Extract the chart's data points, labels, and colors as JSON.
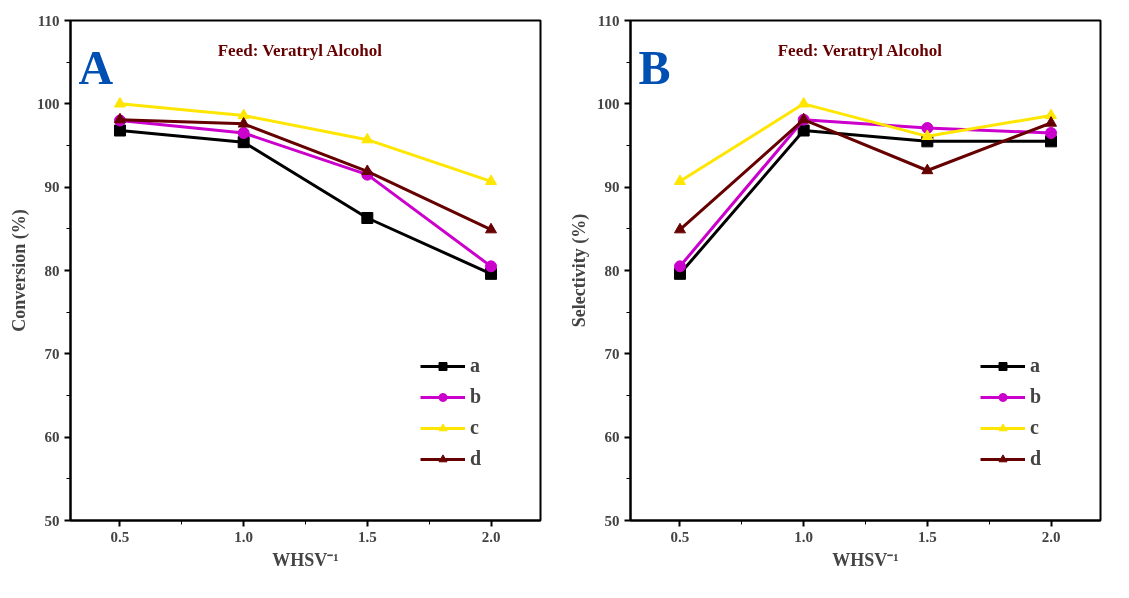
{
  "chart_data": [
    {
      "type": "line",
      "ylabel": "Conversion (%)",
      "xlabel": "WHSV⁻¹",
      "annotations": [
        "A",
        "Feed: Veratryl Alcohol"
      ],
      "x": [
        0.5,
        1.0,
        1.5,
        2.0
      ],
      "xlim": [
        0.3,
        2.2
      ],
      "xticks": [
        {
          "value": 0.5,
          "label": "0.5"
        },
        {
          "value": 1.0,
          "label": "1.0"
        },
        {
          "value": 1.5,
          "label": "1.5"
        },
        {
          "value": 2.0,
          "label": "2.0"
        }
      ],
      "ylim": [
        50,
        110
      ],
      "yticks": [
        50,
        60,
        70,
        80,
        90,
        100,
        110
      ],
      "grid": false,
      "legend": "bottom right",
      "series": [
        {
          "name": "a",
          "color": "#000000",
          "marker": "square",
          "values": [
            96.8,
            95.4,
            86.3,
            79.6
          ]
        },
        {
          "name": "b",
          "color": "#cc00cc",
          "marker": "circle",
          "values": [
            98.0,
            96.5,
            91.5,
            80.5
          ]
        },
        {
          "name": "c",
          "color": "#ffe600",
          "marker": "triangle",
          "values": [
            100.0,
            98.6,
            95.7,
            90.7
          ]
        },
        {
          "name": "d",
          "color": "#660000",
          "marker": "triangle",
          "values": [
            98.1,
            97.6,
            91.9,
            84.9
          ]
        }
      ]
    },
    {
      "type": "line",
      "ylabel": "Selectivity (%)",
      "xlabel": "WHSV⁻¹",
      "annotations": [
        "B",
        "Feed: Veratryl Alcohol"
      ],
      "x": [
        0.5,
        1.0,
        1.5,
        2.0
      ],
      "xlim": [
        0.3,
        2.2
      ],
      "xticks": [
        {
          "value": 0.5,
          "label": "0.5"
        },
        {
          "value": 1.0,
          "label": "1.0"
        },
        {
          "value": 1.5,
          "label": "1.5"
        },
        {
          "value": 2.0,
          "label": "2.0"
        }
      ],
      "ylim": [
        50,
        110
      ],
      "yticks": [
        50,
        60,
        70,
        80,
        90,
        100,
        110
      ],
      "grid": false,
      "legend": "bottom right",
      "series": [
        {
          "name": "a",
          "color": "#000000",
          "marker": "square",
          "values": [
            79.6,
            96.8,
            95.5,
            95.5
          ]
        },
        {
          "name": "b",
          "color": "#cc00cc",
          "marker": "circle",
          "values": [
            80.5,
            98.1,
            97.1,
            96.5
          ]
        },
        {
          "name": "c",
          "color": "#ffe600",
          "marker": "triangle",
          "values": [
            90.7,
            100.0,
            96.1,
            98.6
          ]
        },
        {
          "name": "d",
          "color": "#660000",
          "marker": "triangle",
          "values": [
            84.9,
            98.1,
            92.0,
            97.7
          ]
        }
      ]
    }
  ]
}
